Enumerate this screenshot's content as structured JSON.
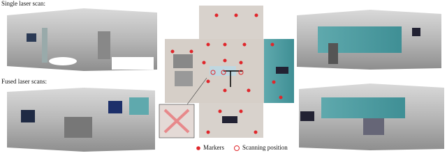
{
  "labels": {
    "single": "Single laser scan:",
    "fused": "Fused laser scans:"
  },
  "legend": {
    "markers": "Markers",
    "scanning_position": "Scanning position"
  }
}
